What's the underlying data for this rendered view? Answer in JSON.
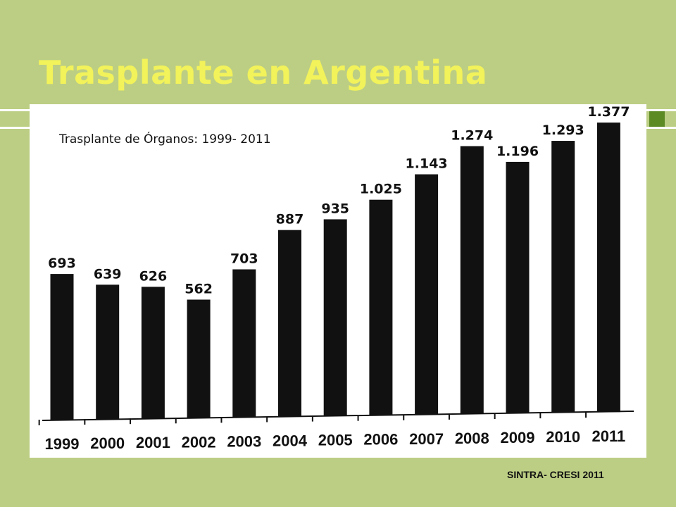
{
  "slide": {
    "title": "Trasplante en Argentina",
    "source": "SINTRA- CRESI 2011",
    "colors": {
      "background": "#bcce84",
      "title": "#f2f25a",
      "accent": "#5c8a23",
      "bars": "#111111"
    }
  },
  "chart_data": {
    "type": "bar",
    "title": "Trasplante de Órganos: 1999- 2011",
    "xlabel": "",
    "ylabel": "",
    "grid": false,
    "categories": [
      "1999",
      "2000",
      "2001",
      "2002",
      "2003",
      "2004",
      "2005",
      "2006",
      "2007",
      "2008",
      "2009",
      "2010",
      "2011"
    ],
    "values": [
      693,
      639,
      626,
      562,
      703,
      887,
      935,
      1025,
      1143,
      1274,
      1196,
      1293,
      1377
    ],
    "value_labels": [
      "693",
      "639",
      "626",
      "562",
      "703",
      "887",
      "935",
      "1.025",
      "1.143",
      "1.274",
      "1.196",
      "1.293",
      "1.377"
    ],
    "ylim": [
      0,
      1400
    ]
  }
}
